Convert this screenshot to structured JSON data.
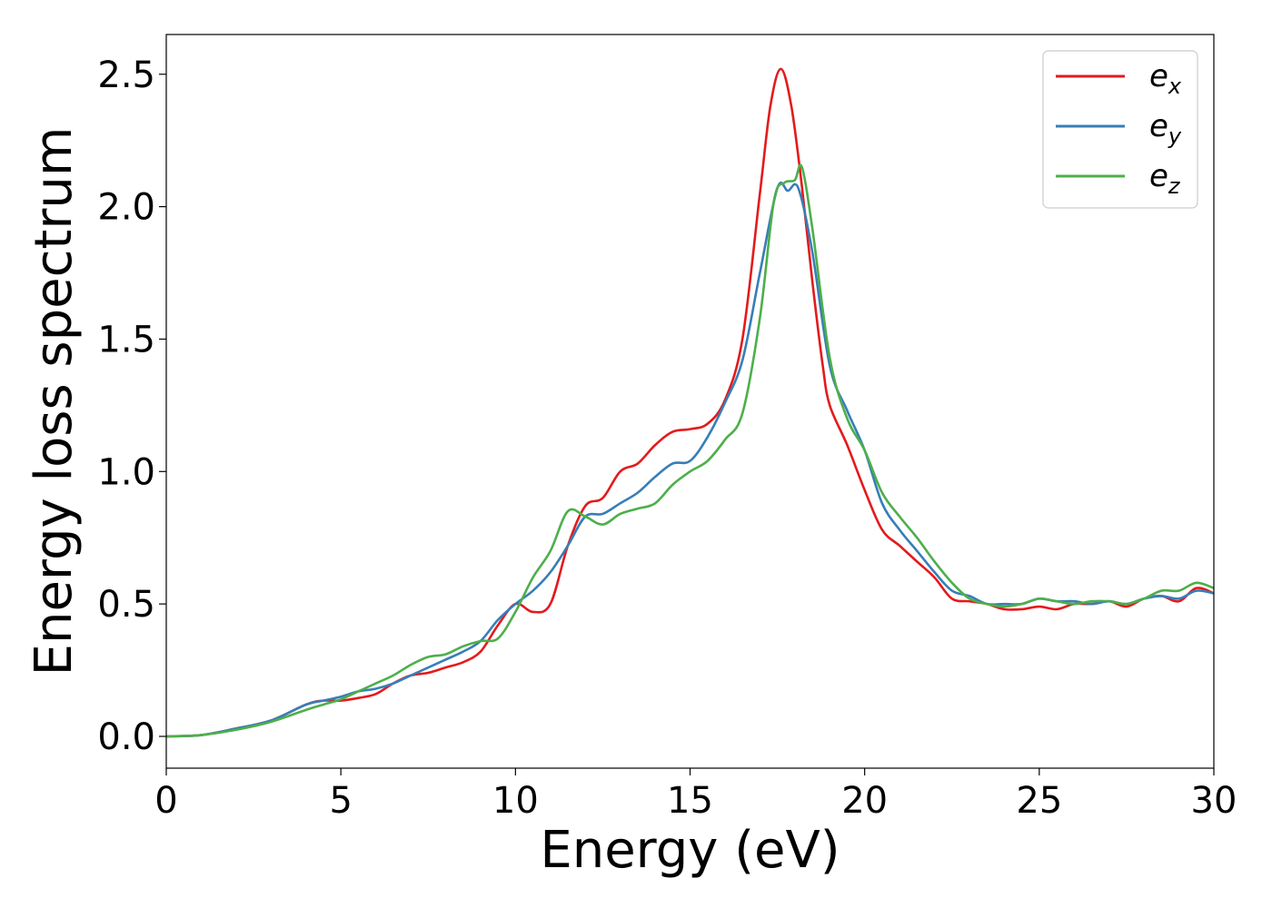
{
  "chart_data": {
    "type": "line",
    "title": "",
    "xlabel": "Energy (eV)",
    "ylabel": "Energy loss spectrum",
    "xlim": [
      0,
      30
    ],
    "ylim": [
      -0.12,
      2.65
    ],
    "xticks": [
      0,
      5,
      10,
      15,
      20,
      25,
      30
    ],
    "xtick_labels": [
      "0",
      "5",
      "10",
      "15",
      "20",
      "25",
      "30"
    ],
    "yticks": [
      0.0,
      0.5,
      1.0,
      1.5,
      2.0,
      2.5
    ],
    "ytick_labels": [
      "0.0",
      "0.5",
      "1.0",
      "1.5",
      "2.0",
      "2.5"
    ],
    "grid": false,
    "legend_position": "top-right",
    "series": [
      {
        "name": "e_x",
        "legend_base": "e",
        "legend_sub": "x",
        "color": "#e41a1c",
        "x": [
          0,
          1,
          2,
          3,
          4,
          4.5,
          5,
          5.5,
          6,
          6.5,
          7,
          7.5,
          8,
          8.5,
          9,
          9.5,
          10,
          10.5,
          11,
          11.5,
          12,
          12.5,
          13,
          13.5,
          14,
          14.5,
          15,
          15.5,
          16,
          16.5,
          17,
          17.3,
          17.6,
          17.9,
          18.2,
          18.5,
          18.8,
          19,
          19.5,
          20,
          20.5,
          21,
          21.5,
          22,
          22.5,
          23,
          23.5,
          24,
          24.5,
          25,
          25.5,
          26,
          26.5,
          27,
          27.5,
          28,
          28.5,
          29,
          29.5,
          30
        ],
        "values": [
          0.0,
          0.005,
          0.03,
          0.06,
          0.12,
          0.135,
          0.135,
          0.145,
          0.16,
          0.2,
          0.23,
          0.24,
          0.26,
          0.28,
          0.32,
          0.42,
          0.5,
          0.47,
          0.5,
          0.72,
          0.87,
          0.9,
          1.0,
          1.03,
          1.1,
          1.15,
          1.16,
          1.18,
          1.27,
          1.5,
          2.05,
          2.38,
          2.52,
          2.38,
          2.08,
          1.72,
          1.4,
          1.25,
          1.1,
          0.93,
          0.78,
          0.72,
          0.66,
          0.6,
          0.52,
          0.51,
          0.5,
          0.48,
          0.48,
          0.49,
          0.48,
          0.5,
          0.5,
          0.51,
          0.49,
          0.52,
          0.53,
          0.51,
          0.56,
          0.54
        ]
      },
      {
        "name": "e_y",
        "legend_base": "e",
        "legend_sub": "y",
        "color": "#377eb8",
        "x": [
          0,
          1,
          2,
          3,
          4,
          4.5,
          5,
          5.5,
          6,
          6.5,
          7,
          7.5,
          8,
          8.5,
          9,
          9.5,
          10,
          10.5,
          11,
          11.5,
          12,
          12.5,
          13,
          13.5,
          14,
          14.5,
          15,
          15.5,
          16,
          16.5,
          17,
          17.5,
          17.8,
          18.1,
          18.5,
          19,
          19.5,
          20,
          20.5,
          21,
          21.5,
          22,
          22.5,
          23,
          23.5,
          24,
          24.5,
          25,
          25.5,
          26,
          26.5,
          27,
          27.5,
          28,
          28.5,
          29,
          29.5,
          30
        ],
        "values": [
          0.0,
          0.005,
          0.03,
          0.06,
          0.12,
          0.135,
          0.15,
          0.17,
          0.18,
          0.2,
          0.23,
          0.26,
          0.29,
          0.32,
          0.36,
          0.44,
          0.5,
          0.55,
          0.62,
          0.72,
          0.83,
          0.84,
          0.88,
          0.92,
          0.98,
          1.03,
          1.04,
          1.13,
          1.26,
          1.42,
          1.75,
          2.07,
          2.06,
          2.07,
          1.83,
          1.4,
          1.23,
          1.08,
          0.88,
          0.78,
          0.7,
          0.62,
          0.55,
          0.53,
          0.5,
          0.5,
          0.5,
          0.52,
          0.51,
          0.51,
          0.5,
          0.51,
          0.5,
          0.52,
          0.53,
          0.52,
          0.55,
          0.54
        ]
      },
      {
        "name": "e_z",
        "legend_base": "e",
        "legend_sub": "z",
        "color": "#4daf4a",
        "x": [
          0,
          1,
          2,
          3,
          4,
          4.5,
          5,
          5.5,
          6,
          6.5,
          7,
          7.5,
          8,
          8.5,
          9,
          9.5,
          10,
          10.5,
          11,
          11.5,
          12,
          12.5,
          13,
          13.5,
          14,
          14.5,
          15,
          15.5,
          16,
          16.5,
          17,
          17.4,
          17.7,
          18.0,
          18.2,
          18.5,
          19,
          19.5,
          20,
          20.5,
          21,
          21.5,
          22,
          22.5,
          23,
          23.5,
          24,
          24.5,
          25,
          25.5,
          26,
          26.5,
          27,
          27.5,
          28,
          28.5,
          29,
          29.5,
          30
        ],
        "values": [
          0.0,
          0.005,
          0.025,
          0.055,
          0.1,
          0.12,
          0.14,
          0.17,
          0.2,
          0.23,
          0.27,
          0.3,
          0.31,
          0.34,
          0.36,
          0.37,
          0.47,
          0.6,
          0.7,
          0.85,
          0.83,
          0.8,
          0.84,
          0.86,
          0.88,
          0.95,
          1.0,
          1.04,
          1.12,
          1.22,
          1.58,
          2.02,
          2.09,
          2.1,
          2.15,
          1.92,
          1.43,
          1.2,
          1.08,
          0.92,
          0.83,
          0.75,
          0.66,
          0.58,
          0.52,
          0.5,
          0.49,
          0.5,
          0.52,
          0.51,
          0.5,
          0.51,
          0.51,
          0.5,
          0.52,
          0.55,
          0.55,
          0.58,
          0.56
        ]
      }
    ]
  }
}
